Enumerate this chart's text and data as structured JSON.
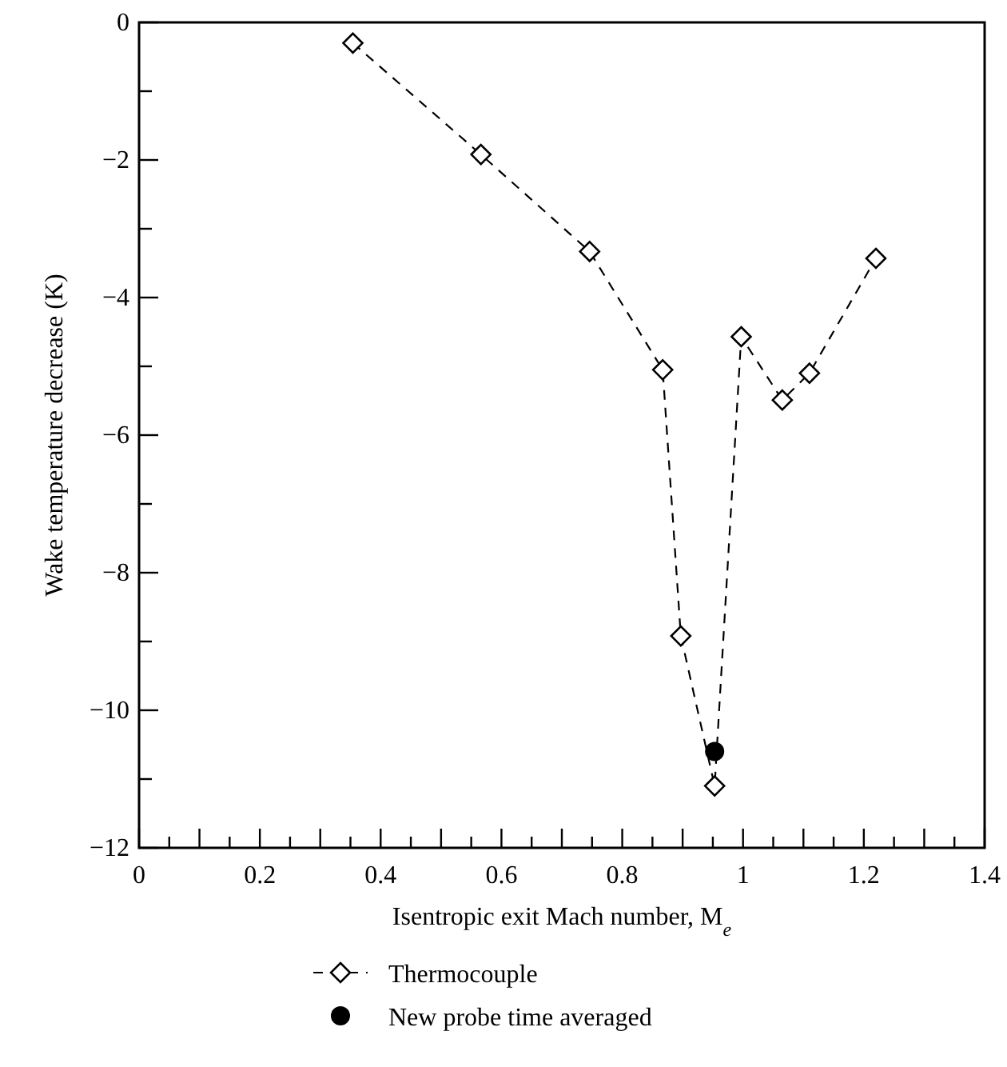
{
  "chart_data": {
    "type": "line",
    "xlabel": "Isentropic exit Mach number, M$_{e}$",
    "ylabel": "Wake temperature decrease (K)",
    "xlim": [
      0,
      1.4
    ],
    "ylim": [
      -12,
      0
    ],
    "xticks": [
      0,
      {
        "value": 0.05,
        "label": null
      },
      {
        "value": 0.1,
        "label": null
      },
      {
        "value": 0.15,
        "label": null
      },
      0.2,
      {
        "value": 0.25,
        "label": null
      },
      {
        "value": 0.3,
        "label": null
      },
      {
        "value": 0.35,
        "label": null
      },
      0.4,
      {
        "value": 0.45,
        "label": null
      },
      {
        "value": 0.5,
        "label": null
      },
      {
        "value": 0.55,
        "label": null
      },
      0.6,
      {
        "value": 0.65,
        "label": null
      },
      {
        "value": 0.7,
        "label": null
      },
      {
        "value": 0.75,
        "label": null
      },
      0.8,
      {
        "value": 0.85,
        "label": null
      },
      {
        "value": 0.9,
        "label": null
      },
      {
        "value": 0.95,
        "label": null
      },
      1,
      {
        "value": 1.05,
        "label": null
      },
      {
        "value": 1.1,
        "label": null
      },
      {
        "value": 1.15,
        "label": null
      },
      1.2,
      {
        "value": 1.25,
        "label": null
      },
      {
        "value": 1.3,
        "label": null
      },
      {
        "value": 1.35,
        "label": null
      },
      1.4
    ],
    "yticks": [
      {
        "value": -12,
        "label": "−12"
      },
      {
        "value": -11,
        "label": null
      },
      {
        "value": -10,
        "label": "−10"
      },
      {
        "value": -9,
        "label": null
      },
      {
        "value": -8,
        "label": "−8"
      },
      {
        "value": -7,
        "label": null
      },
      {
        "value": -6,
        "label": "−6"
      },
      {
        "value": -5,
        "label": null
      },
      {
        "value": -4,
        "label": "−4"
      },
      {
        "value": -3,
        "label": null
      },
      {
        "value": -2,
        "label": "−2"
      },
      {
        "value": -1,
        "label": null
      },
      0
    ],
    "grid": false,
    "legend": "bottom",
    "series": [
      {
        "name": "Thermocouple",
        "color": "#000000",
        "marker": "diamond",
        "line_style": "dashed",
        "x": [
          0.354,
          0.566,
          0.746,
          0.867,
          0.897,
          0.953,
          0.997,
          1.065,
          1.11,
          1.22
        ],
        "values": [
          -0.3,
          -1.92,
          -3.33,
          -5.05,
          -8.92,
          -11.1,
          -4.57,
          -5.49,
          -5.1,
          -3.43
        ]
      },
      {
        "name": "New probe time averaged",
        "type": "scatter",
        "color": "#000000",
        "marker": "circle",
        "x": [
          0.953
        ],
        "values": [
          -10.6
        ]
      }
    ]
  }
}
